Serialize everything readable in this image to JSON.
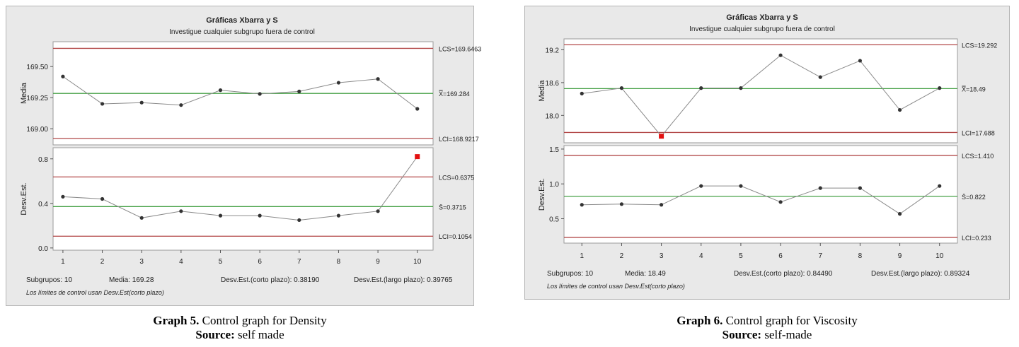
{
  "chart_data": [
    {
      "type": "line",
      "title": "Gráficas Xbarra y S",
      "subtitle": "Investigue cualquier subgrupo fuera de control",
      "x": [
        1,
        2,
        3,
        4,
        5,
        6,
        7,
        8,
        9,
        10
      ],
      "xlim": [
        0.75,
        10.4
      ],
      "mean_chart": {
        "ylabel": "Media",
        "yticks": [
          169.0,
          169.25,
          169.5
        ],
        "ytick_labels": [
          "169.00",
          "169.25",
          "169.50"
        ],
        "ylim": [
          168.87,
          169.7
        ],
        "values": [
          169.42,
          169.2,
          169.21,
          169.19,
          169.31,
          169.28,
          169.3,
          169.37,
          169.4,
          169.16
        ],
        "out_of_control": [],
        "ucl": 169.6463,
        "center": 169.284,
        "lcl": 168.9217,
        "ucl_label": "LCS=169.6463",
        "center_label": "X̿=169.284",
        "lcl_label": "LCI=168.9217"
      },
      "sd_chart": {
        "ylabel": "Desv.Est.",
        "yticks": [
          0.0,
          0.4,
          0.8
        ],
        "ytick_labels": [
          "0.0",
          "0.4",
          "0.8"
        ],
        "ylim": [
          -0.02,
          0.9
        ],
        "values": [
          0.46,
          0.44,
          0.27,
          0.33,
          0.29,
          0.29,
          0.25,
          0.29,
          0.33,
          0.82
        ],
        "out_of_control": [
          10
        ],
        "ucl": 0.6375,
        "center": 0.3715,
        "lcl": 0.1054,
        "ucl_label": "LCS=0.6375",
        "center_label": "S̄=0.3715",
        "lcl_label": "LCI=0.1054"
      },
      "footer": {
        "subgroups": "Subgrupos: 10",
        "mean": "Media: 169.28",
        "sd_short": "Desv.Est.(corto plazo): 0.38190",
        "sd_long": "Desv.Est.(largo plazo): 0.39765",
        "note": "Los límites de control usan Desv.Est(corto plazo)"
      },
      "colors": {
        "limits": "#b24848",
        "center": "#44a044",
        "points": "#333333",
        "alert": "#e31010"
      }
    },
    {
      "type": "line",
      "title": "Gráficas Xbarra y S",
      "subtitle": "Investigue cualquier subgrupo fuera de control",
      "x": [
        1,
        2,
        3,
        4,
        5,
        6,
        7,
        8,
        9,
        10
      ],
      "xlim": [
        0.55,
        10.45
      ],
      "mean_chart": {
        "ylabel": "Media",
        "yticks": [
          18.0,
          18.6,
          19.2
        ],
        "ytick_labels": [
          "18.0",
          "18.6",
          "19.2"
        ],
        "ylim": [
          17.5,
          19.4
        ],
        "values": [
          18.4,
          18.5,
          17.62,
          18.5,
          18.5,
          19.1,
          18.7,
          19.0,
          18.1,
          18.5
        ],
        "out_of_control": [
          3
        ],
        "ucl": 19.292,
        "center": 18.49,
        "lcl": 17.688,
        "ucl_label": "LCS=19.292",
        "center_label": "X̿=18.49",
        "lcl_label": "LCI=17.688"
      },
      "sd_chart": {
        "ylabel": "Desv.Est.",
        "yticks": [
          0.5,
          1.0,
          1.5
        ],
        "ytick_labels": [
          "0.5",
          "1.0",
          "1.5"
        ],
        "ylim": [
          0.15,
          1.55
        ],
        "values": [
          0.7,
          0.71,
          0.7,
          0.97,
          0.97,
          0.74,
          0.94,
          0.94,
          0.57,
          0.97
        ],
        "out_of_control": [],
        "ucl": 1.41,
        "center": 0.822,
        "lcl": 0.233,
        "ucl_label": "LCS=1.410",
        "center_label": "S̄=0.822",
        "lcl_label": "LCI=0.233"
      },
      "footer": {
        "subgroups": "Subgrupos: 10",
        "mean": "Media: 18.49",
        "sd_short": "Desv.Est.(corto plazo): 0.84490",
        "sd_long": "Desv.Est.(largo plazo): 0.89324",
        "note": "Los límites de control usan Desv.Est(corto plazo)"
      },
      "colors": {
        "limits": "#b24848",
        "center": "#44a044",
        "points": "#333333",
        "alert": "#e31010"
      }
    }
  ],
  "captions": [
    {
      "label": "Graph 5.",
      "text": " Control graph for Density",
      "source_label": "Source:",
      "source_text": " self made"
    },
    {
      "label": "Graph 6.",
      "text": " Control graph for Viscosity",
      "source_label": "Source:",
      "source_text": " self-made"
    }
  ]
}
